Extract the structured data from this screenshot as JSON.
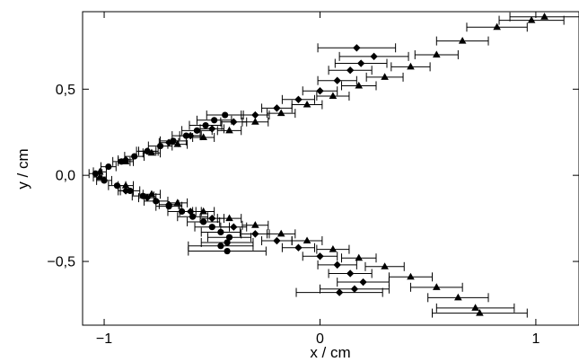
{
  "chart_data": {
    "type": "scatter",
    "title": "",
    "xlabel": "x / cm",
    "ylabel": "y / cm",
    "xlim": [
      -1.1,
      1.2
    ],
    "ylim": [
      -0.87,
      0.95
    ],
    "x_ticks": [
      -1,
      0,
      1
    ],
    "x_tick_labels": [
      "−1",
      "0",
      "1"
    ],
    "y_ticks": [
      -0.5,
      0.0,
      0.5
    ],
    "y_tick_labels": [
      "−0,5",
      "0,0",
      "0,5"
    ],
    "grid": false,
    "legend": "none",
    "series": [
      {
        "marker": "circle",
        "points": [
          {
            "x": -1.04,
            "y": 0.01,
            "xerr": 0.03
          },
          {
            "x": -0.98,
            "y": 0.05,
            "xerr": 0.035
          },
          {
            "x": -0.92,
            "y": 0.08,
            "xerr": 0.04
          },
          {
            "x": -0.86,
            "y": 0.11,
            "xerr": 0.045
          },
          {
            "x": -0.8,
            "y": 0.14,
            "xerr": 0.05
          },
          {
            "x": -0.74,
            "y": 0.17,
            "xerr": 0.055
          },
          {
            "x": -0.68,
            "y": 0.2,
            "xerr": 0.06
          },
          {
            "x": -0.62,
            "y": 0.23,
            "xerr": 0.065
          },
          {
            "x": -0.57,
            "y": 0.26,
            "xerr": 0.07
          },
          {
            "x": -0.53,
            "y": 0.29,
            "xerr": 0.075
          },
          {
            "x": -0.49,
            "y": 0.32,
            "xerr": 0.08
          },
          {
            "x": -0.44,
            "y": 0.35,
            "xerr": 0.085
          },
          {
            "x": -1.0,
            "y": -0.03,
            "xerr": 0.035
          },
          {
            "x": -0.94,
            "y": -0.06,
            "xerr": 0.04
          },
          {
            "x": -0.88,
            "y": -0.09,
            "xerr": 0.045
          },
          {
            "x": -0.82,
            "y": -0.12,
            "xerr": 0.05
          },
          {
            "x": -0.76,
            "y": -0.15,
            "xerr": 0.055
          },
          {
            "x": -0.7,
            "y": -0.18,
            "xerr": 0.06
          },
          {
            "x": -0.64,
            "y": -0.21,
            "xerr": 0.065
          },
          {
            "x": -0.59,
            "y": -0.24,
            "xerr": 0.07
          },
          {
            "x": -0.54,
            "y": -0.27,
            "xerr": 0.075
          },
          {
            "x": -0.5,
            "y": -0.3,
            "xerr": 0.08
          },
          {
            "x": -0.46,
            "y": -0.33,
            "xerr": 0.09
          },
          {
            "x": -0.42,
            "y": -0.36,
            "xerr": 0.1
          },
          {
            "x": -0.43,
            "y": -0.39,
            "xerr": 0.12
          },
          {
            "x": -0.46,
            "y": -0.41,
            "xerr": 0.15
          },
          {
            "x": -0.43,
            "y": -0.44,
            "xerr": 0.18
          }
        ]
      },
      {
        "marker": "diamond",
        "points": [
          {
            "x": -0.9,
            "y": 0.09,
            "xerr": 0.035
          },
          {
            "x": -0.8,
            "y": 0.14,
            "xerr": 0.04
          },
          {
            "x": -0.7,
            "y": 0.19,
            "xerr": 0.045
          },
          {
            "x": -0.6,
            "y": 0.23,
            "xerr": 0.05
          },
          {
            "x": -0.5,
            "y": 0.27,
            "xerr": 0.055
          },
          {
            "x": -0.4,
            "y": 0.31,
            "xerr": 0.06
          },
          {
            "x": -0.3,
            "y": 0.35,
            "xerr": 0.065
          },
          {
            "x": -0.2,
            "y": 0.39,
            "xerr": 0.07
          },
          {
            "x": -0.1,
            "y": 0.44,
            "xerr": 0.075
          },
          {
            "x": 0.0,
            "y": 0.49,
            "xerr": 0.08
          },
          {
            "x": 0.08,
            "y": 0.55,
            "xerr": 0.09
          },
          {
            "x": 0.14,
            "y": 0.61,
            "xerr": 0.1
          },
          {
            "x": 0.19,
            "y": 0.65,
            "xerr": 0.12
          },
          {
            "x": 0.25,
            "y": 0.69,
            "xerr": 0.16
          },
          {
            "x": 0.17,
            "y": 0.74,
            "xerr": 0.18
          },
          {
            "x": -0.9,
            "y": -0.09,
            "xerr": 0.035
          },
          {
            "x": -0.8,
            "y": -0.13,
            "xerr": 0.04
          },
          {
            "x": -0.7,
            "y": -0.17,
            "xerr": 0.045
          },
          {
            "x": -0.6,
            "y": -0.21,
            "xerr": 0.05
          },
          {
            "x": -0.5,
            "y": -0.25,
            "xerr": 0.055
          },
          {
            "x": -0.4,
            "y": -0.3,
            "xerr": 0.06
          },
          {
            "x": -0.3,
            "y": -0.34,
            "xerr": 0.065
          },
          {
            "x": -0.2,
            "y": -0.38,
            "xerr": 0.07
          },
          {
            "x": -0.1,
            "y": -0.42,
            "xerr": 0.075
          },
          {
            "x": 0.0,
            "y": -0.47,
            "xerr": 0.08
          },
          {
            "x": 0.08,
            "y": -0.52,
            "xerr": 0.09
          },
          {
            "x": 0.14,
            "y": -0.57,
            "xerr": 0.1
          },
          {
            "x": 0.2,
            "y": -0.62,
            "xerr": 0.12
          },
          {
            "x": 0.16,
            "y": -0.66,
            "xerr": 0.16
          },
          {
            "x": 0.09,
            "y": -0.68,
            "xerr": 0.2
          }
        ]
      },
      {
        "marker": "triangle",
        "points": [
          {
            "x": -1.02,
            "y": 0.02,
            "xerr": 0.03
          },
          {
            "x": -0.9,
            "y": 0.08,
            "xerr": 0.035
          },
          {
            "x": -0.78,
            "y": 0.13,
            "xerr": 0.04
          },
          {
            "x": -0.66,
            "y": 0.18,
            "xerr": 0.045
          },
          {
            "x": -0.54,
            "y": 0.22,
            "xerr": 0.05
          },
          {
            "x": -0.42,
            "y": 0.26,
            "xerr": 0.055
          },
          {
            "x": -0.3,
            "y": 0.31,
            "xerr": 0.06
          },
          {
            "x": -0.18,
            "y": 0.36,
            "xerr": 0.065
          },
          {
            "x": -0.06,
            "y": 0.41,
            "xerr": 0.07
          },
          {
            "x": 0.06,
            "y": 0.46,
            "xerr": 0.075
          },
          {
            "x": 0.18,
            "y": 0.52,
            "xerr": 0.08
          },
          {
            "x": 0.3,
            "y": 0.57,
            "xerr": 0.085
          },
          {
            "x": 0.42,
            "y": 0.63,
            "xerr": 0.09
          },
          {
            "x": 0.54,
            "y": 0.7,
            "xerr": 0.1
          },
          {
            "x": 0.66,
            "y": 0.78,
            "xerr": 0.12
          },
          {
            "x": 0.82,
            "y": 0.86,
            "xerr": 0.14
          },
          {
            "x": 0.98,
            "y": 0.9,
            "xerr": 0.15
          },
          {
            "x": 1.04,
            "y": 0.92,
            "xerr": 0.16
          },
          {
            "x": -1.02,
            "y": -0.01,
            "xerr": 0.03
          },
          {
            "x": -0.9,
            "y": -0.06,
            "xerr": 0.035
          },
          {
            "x": -0.78,
            "y": -0.11,
            "xerr": 0.04
          },
          {
            "x": -0.66,
            "y": -0.16,
            "xerr": 0.045
          },
          {
            "x": -0.54,
            "y": -0.21,
            "xerr": 0.05
          },
          {
            "x": -0.42,
            "y": -0.25,
            "xerr": 0.055
          },
          {
            "x": -0.3,
            "y": -0.29,
            "xerr": 0.06
          },
          {
            "x": -0.18,
            "y": -0.34,
            "xerr": 0.065
          },
          {
            "x": -0.06,
            "y": -0.38,
            "xerr": 0.07
          },
          {
            "x": 0.06,
            "y": -0.43,
            "xerr": 0.075
          },
          {
            "x": 0.18,
            "y": -0.48,
            "xerr": 0.08
          },
          {
            "x": 0.3,
            "y": -0.53,
            "xerr": 0.09
          },
          {
            "x": 0.42,
            "y": -0.59,
            "xerr": 0.1
          },
          {
            "x": 0.54,
            "y": -0.65,
            "xerr": 0.12
          },
          {
            "x": 0.64,
            "y": -0.71,
            "xerr": 0.14
          },
          {
            "x": 0.72,
            "y": -0.77,
            "xerr": 0.18
          },
          {
            "x": 0.74,
            "y": -0.8,
            "xerr": 0.22
          }
        ]
      }
    ]
  }
}
